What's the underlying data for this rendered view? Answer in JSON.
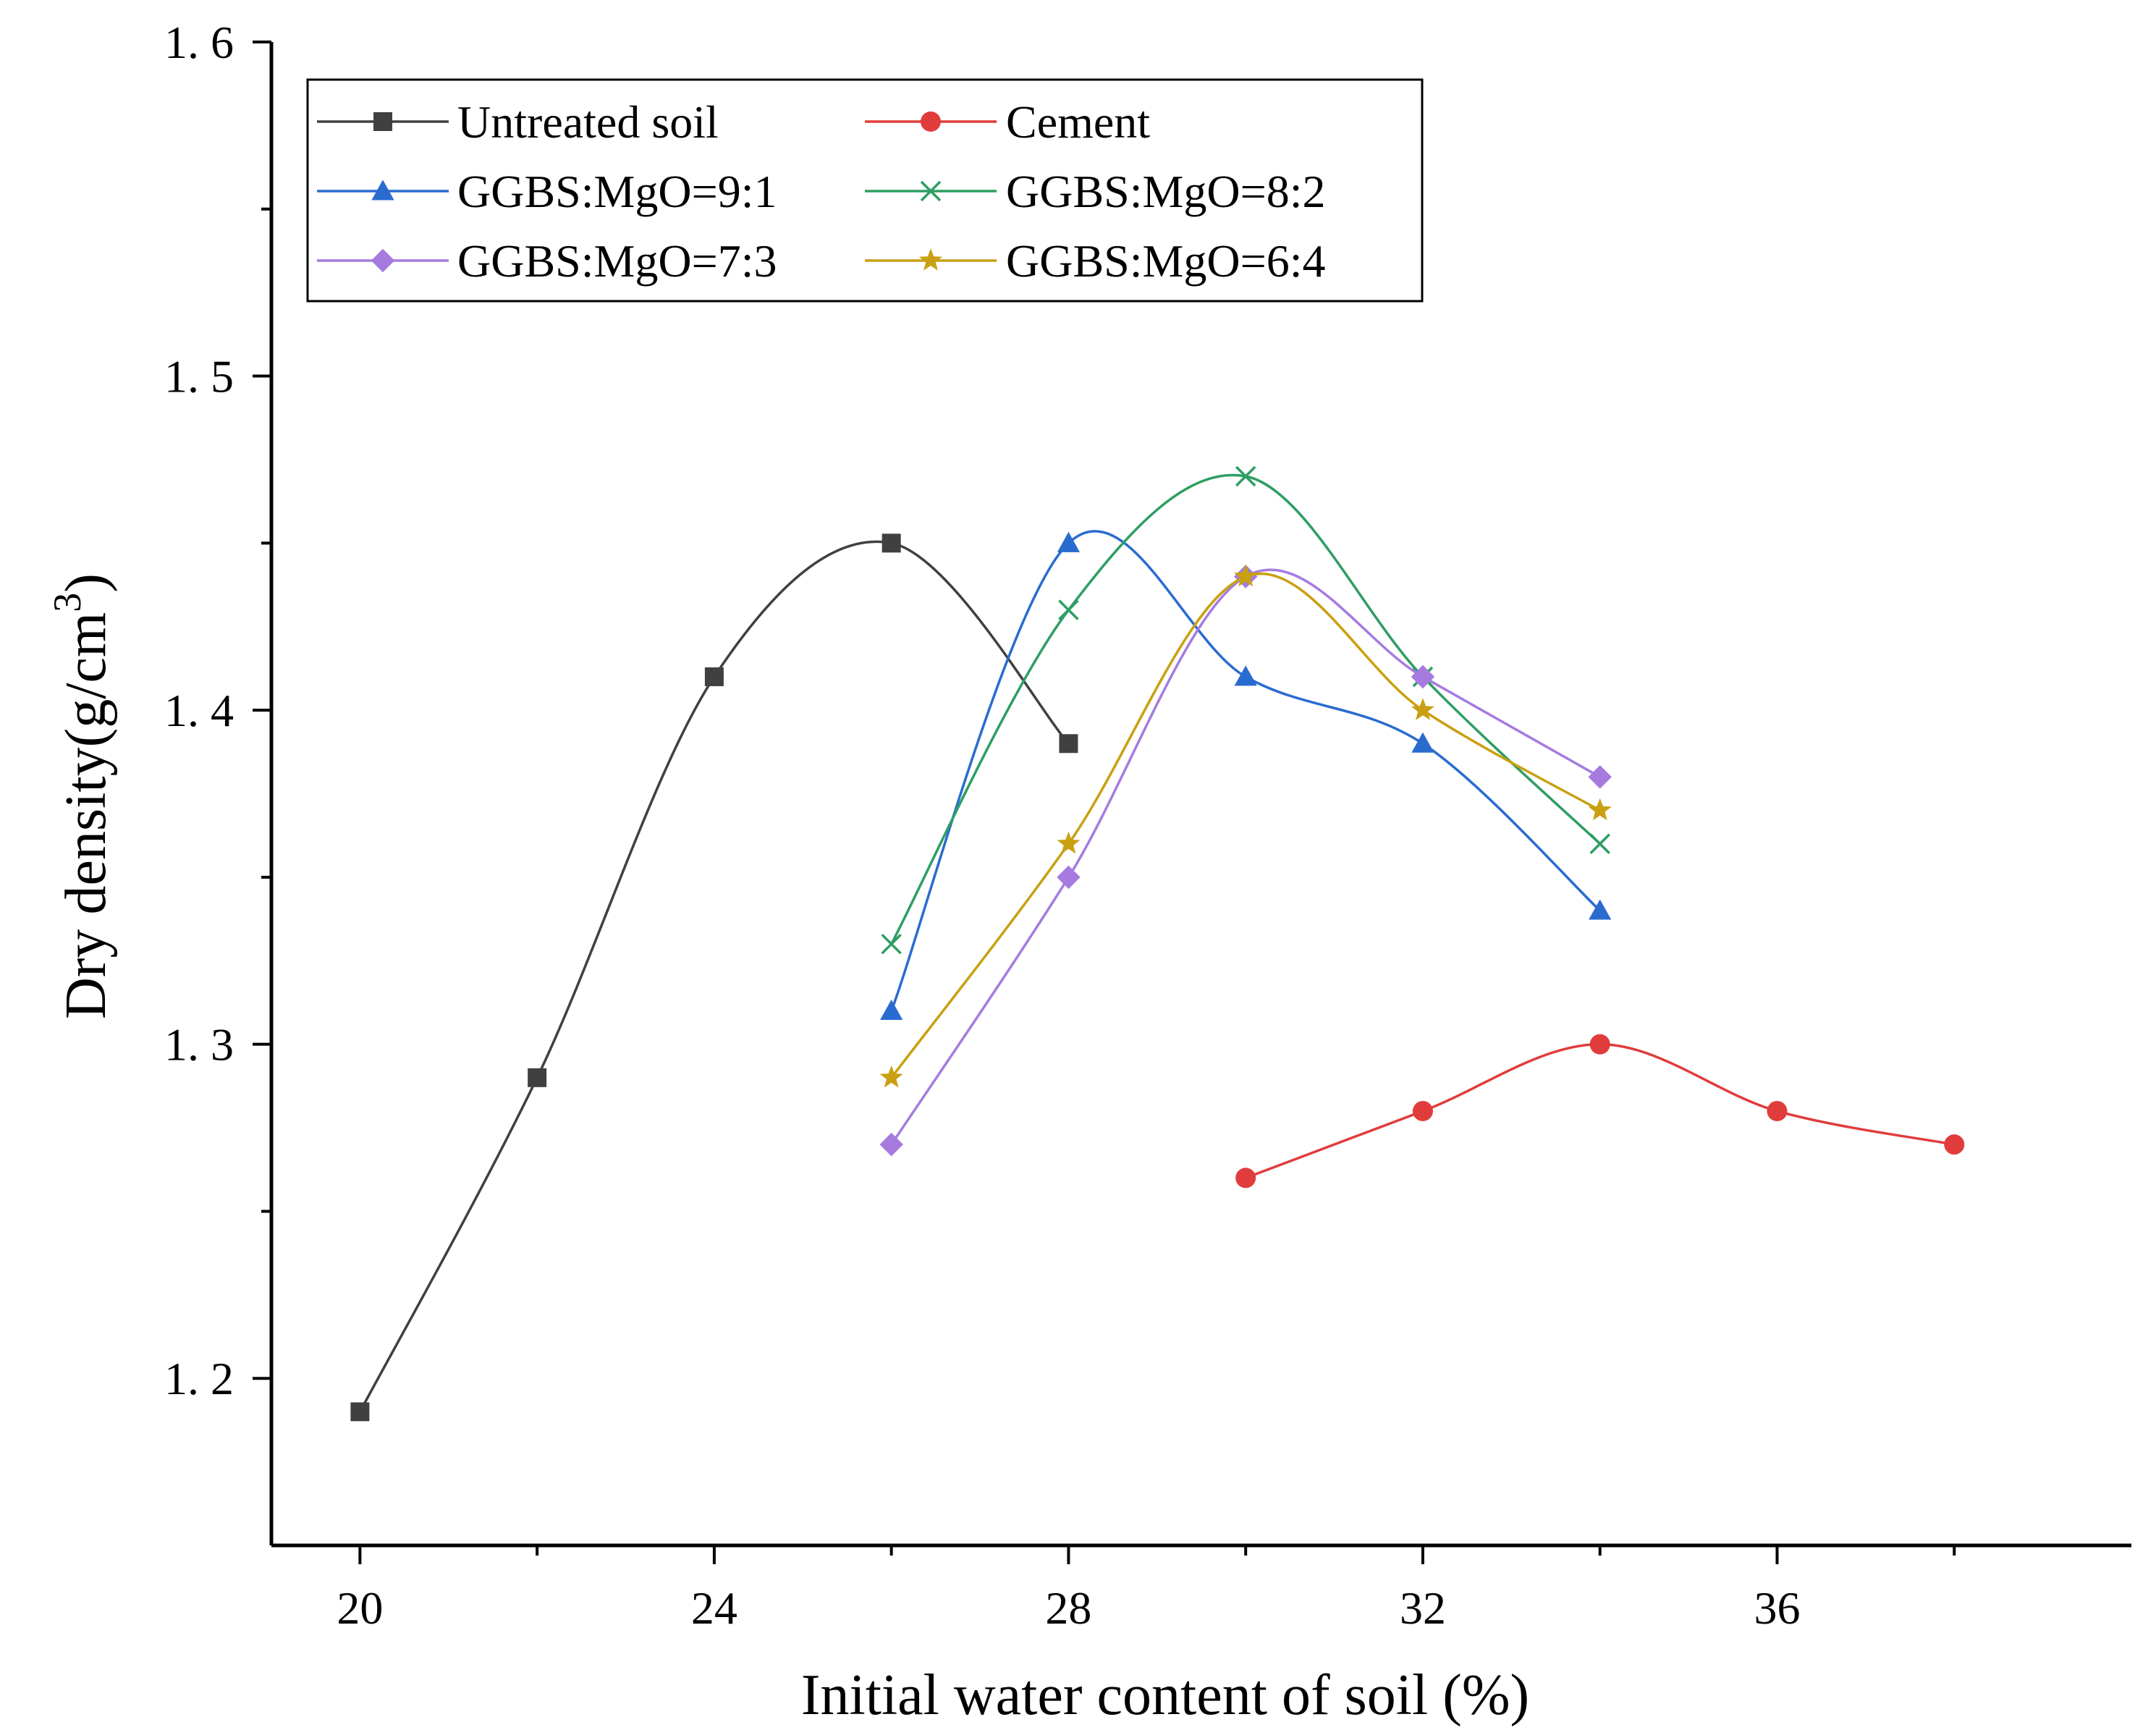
{
  "chart_data": {
    "type": "line",
    "title": "",
    "xlabel": "Initial water content of soil (%)",
    "ylabel_main": "Dry density(g/cm",
    "ylabel_sup": "3",
    "ylabel_close": ")",
    "xlim": [
      19,
      40
    ],
    "ylim": [
      1.15,
      1.6
    ],
    "xticks": [
      20,
      24,
      28,
      32,
      36
    ],
    "xtick_labels": [
      "20",
      "24",
      "28",
      "32",
      "36"
    ],
    "xminor": [
      22,
      26,
      30,
      34,
      38
    ],
    "yticks": [
      1.2,
      1.3,
      1.4,
      1.5,
      1.6
    ],
    "ytick_labels": [
      "1. 2",
      "1. 3",
      "1. 4",
      "1. 5",
      "1. 6"
    ],
    "yminor": [
      1.25,
      1.35,
      1.45,
      1.55
    ],
    "series": [
      {
        "name": "Untreated soil",
        "color": "#404040",
        "marker": "square",
        "x": [
          20,
          22,
          24,
          26,
          28
        ],
        "y": [
          1.19,
          1.29,
          1.41,
          1.45,
          1.39
        ]
      },
      {
        "name": "Cement",
        "color": "#e03c3c",
        "marker": "circle",
        "x": [
          30,
          32,
          34,
          36,
          38
        ],
        "y": [
          1.26,
          1.28,
          1.3,
          1.28,
          1.27
        ]
      },
      {
        "name": "GGBS:MgO=9:1",
        "color": "#2a6bd0",
        "marker": "triangle",
        "x": [
          26,
          28,
          30,
          32,
          34
        ],
        "y": [
          1.31,
          1.45,
          1.41,
          1.39,
          1.34
        ]
      },
      {
        "name": "GGBS:MgO=8:2",
        "color": "#2e9e63",
        "marker": "x",
        "x": [
          26,
          28,
          30,
          32,
          34
        ],
        "y": [
          1.33,
          1.43,
          1.47,
          1.41,
          1.36
        ]
      },
      {
        "name": "GGBS:MgO=7:3",
        "color": "#a57be0",
        "marker": "diamond",
        "x": [
          26,
          28,
          30,
          32,
          34
        ],
        "y": [
          1.27,
          1.35,
          1.44,
          1.41,
          1.38
        ]
      },
      {
        "name": "GGBS:MgO=6:4",
        "color": "#c9a012",
        "marker": "star",
        "x": [
          26,
          28,
          30,
          32,
          34
        ],
        "y": [
          1.29,
          1.36,
          1.44,
          1.4,
          1.37
        ]
      }
    ],
    "legend_position": "top-left"
  }
}
